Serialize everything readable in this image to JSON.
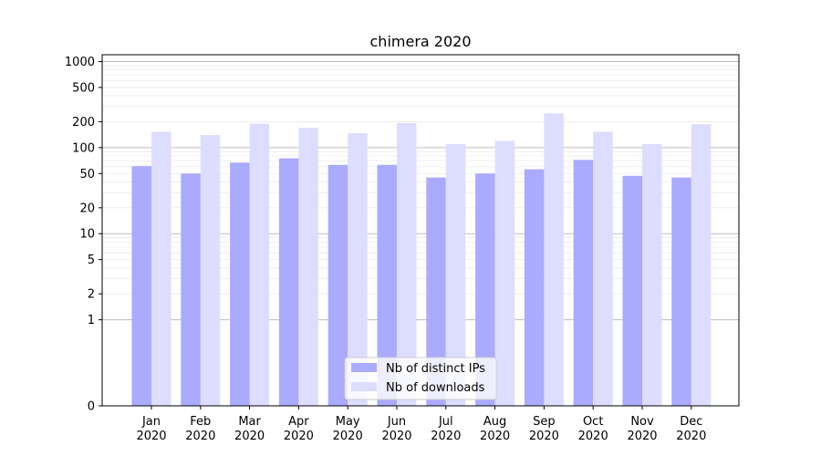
{
  "chart_data": {
    "type": "bar",
    "title": "chimera 2020",
    "xlabel": "",
    "ylabel": "",
    "y_scale": "symlog",
    "ylim": [
      0,
      1200
    ],
    "y_ticks": [
      0,
      1,
      2,
      5,
      10,
      20,
      50,
      100,
      200,
      500,
      1000
    ],
    "y_tick_labels": [
      "0",
      "1",
      "2",
      "5",
      "10",
      "20",
      "50",
      "100",
      "200",
      "500",
      "1000"
    ],
    "grid": true,
    "legend_position": "bottom-center",
    "categories": [
      "Jan\n2020",
      "Feb\n2020",
      "Mar\n2020",
      "Apr\n2020",
      "May\n2020",
      "Jun\n2020",
      "Jul\n2020",
      "Aug\n2020",
      "Sep\n2020",
      "Oct\n2020",
      "Nov\n2020",
      "Dec\n2020"
    ],
    "series": [
      {
        "name": "Nb of distinct IPs",
        "color": "#aaaaff",
        "values": [
          61,
          50,
          67,
          75,
          63,
          63,
          45,
          50,
          56,
          72,
          47,
          45
        ]
      },
      {
        "name": "Nb of downloads",
        "color": "#ddddff",
        "values": [
          153,
          140,
          190,
          170,
          147,
          193,
          110,
          120,
          250,
          153,
          110,
          187
        ]
      }
    ]
  }
}
